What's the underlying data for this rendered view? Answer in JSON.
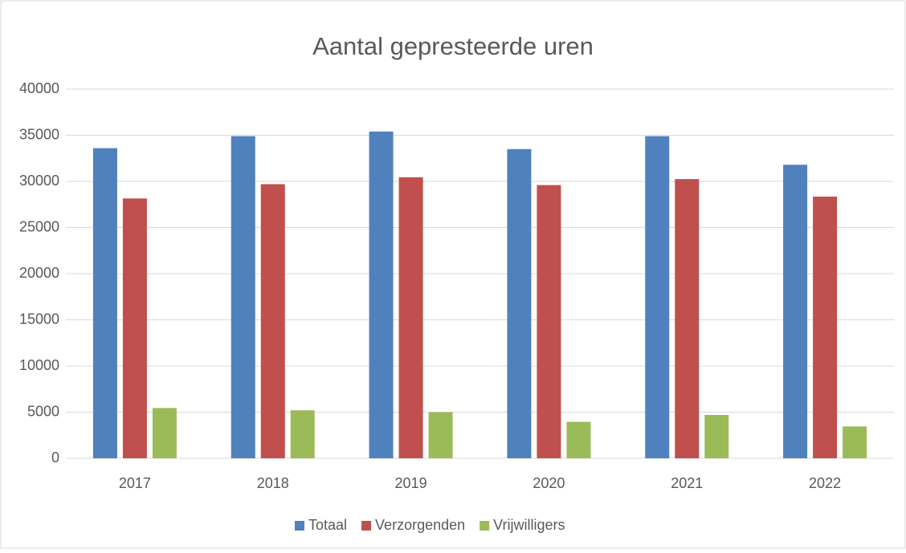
{
  "chart_data": {
    "type": "bar",
    "title": "Aantal gepresteerde uren",
    "categories": [
      "2017",
      "2018",
      "2019",
      "2020",
      "2021",
      "2022"
    ],
    "series": [
      {
        "name": "Totaal",
        "color": "#4f81bd",
        "values": [
          33600,
          34900,
          35400,
          33500,
          34900,
          31800
        ]
      },
      {
        "name": "Verzorgenden",
        "color": "#c0504d",
        "values": [
          28150,
          29700,
          30450,
          29600,
          30250,
          28350
        ]
      },
      {
        "name": "Vrijwilligers",
        "color": "#9bbb59",
        "values": [
          5450,
          5200,
          5000,
          3950,
          4700,
          3450
        ]
      }
    ],
    "ylim": [
      0,
      40000
    ],
    "yticks": [
      0,
      5000,
      10000,
      15000,
      20000,
      25000,
      30000,
      35000,
      40000
    ],
    "grid": true,
    "legend": "bottom"
  }
}
